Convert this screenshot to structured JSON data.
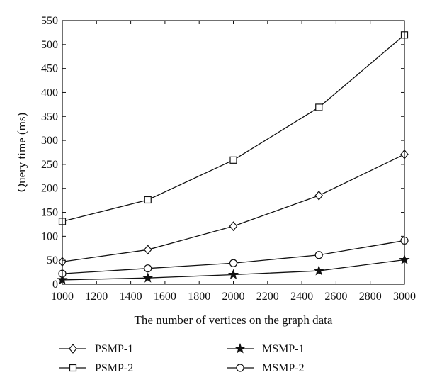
{
  "chart_data": {
    "type": "line",
    "title": "",
    "xlabel": "The number of vertices on the graph data",
    "ylabel": "Query time (ms)",
    "xlim": [
      1000,
      3000
    ],
    "ylim": [
      0,
      550
    ],
    "xticks": [
      1000,
      1200,
      1400,
      1600,
      1800,
      2000,
      2200,
      2400,
      2600,
      2800,
      3000
    ],
    "yticks": [
      0,
      50,
      100,
      150,
      200,
      250,
      300,
      350,
      400,
      450,
      500,
      550
    ],
    "x": [
      1000,
      1500,
      2000,
      2500,
      3000
    ],
    "grid": false,
    "legend_placement": "bottom",
    "series": [
      {
        "name": "PSMP-1",
        "marker": "diamond",
        "values": [
          47,
          72,
          121,
          185,
          271
        ]
      },
      {
        "name": "PSMP-2",
        "marker": "square",
        "values": [
          131,
          176,
          259,
          369,
          520
        ]
      },
      {
        "name": "MSMP-1",
        "marker": "star",
        "values": [
          9,
          13,
          20,
          28,
          51
        ]
      },
      {
        "name": "MSMP-2",
        "marker": "circle",
        "values": [
          22,
          33,
          44,
          61,
          91
        ]
      }
    ]
  }
}
